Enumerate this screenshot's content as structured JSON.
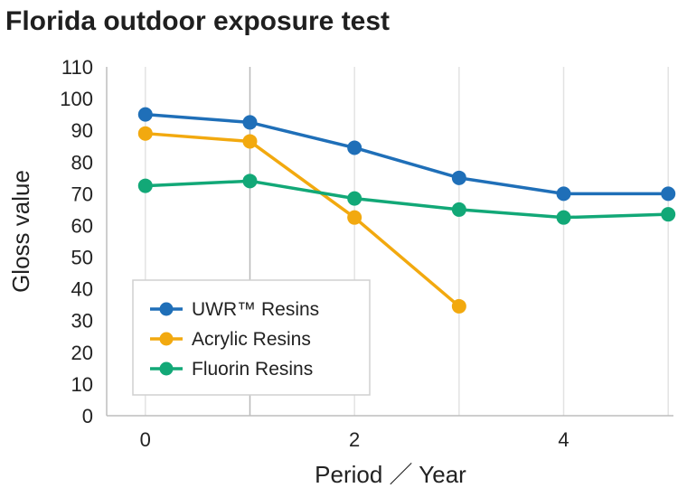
{
  "chart_data": {
    "type": "line",
    "title": "Florida outdoor exposure test",
    "xlabel": "Period ／ Year",
    "ylabel": "Gloss value",
    "x": [
      0,
      1,
      2,
      3,
      4,
      5
    ],
    "x_tick_labels": [
      "0",
      "",
      "2",
      "",
      "4",
      ""
    ],
    "xlim": [
      -0.37,
      5.05
    ],
    "ylim": [
      0,
      110
    ],
    "y_ticks": [
      0,
      10,
      20,
      30,
      40,
      50,
      60,
      70,
      80,
      90,
      100,
      110
    ],
    "grid": "vertical",
    "legend_position": "lower-left",
    "series": [
      {
        "name": "UWR™ Resins",
        "color": "#1f6fb8",
        "values": [
          95,
          92.5,
          84.5,
          75,
          70,
          70
        ]
      },
      {
        "name": "Acrylic Resins",
        "color": "#f2a90f",
        "values": [
          89,
          86.5,
          62.5,
          34.5,
          null,
          null
        ]
      },
      {
        "name": "Fluorin Resins",
        "color": "#12a877",
        "values": [
          72.5,
          74,
          68.5,
          65,
          62.5,
          63.5
        ]
      }
    ]
  }
}
